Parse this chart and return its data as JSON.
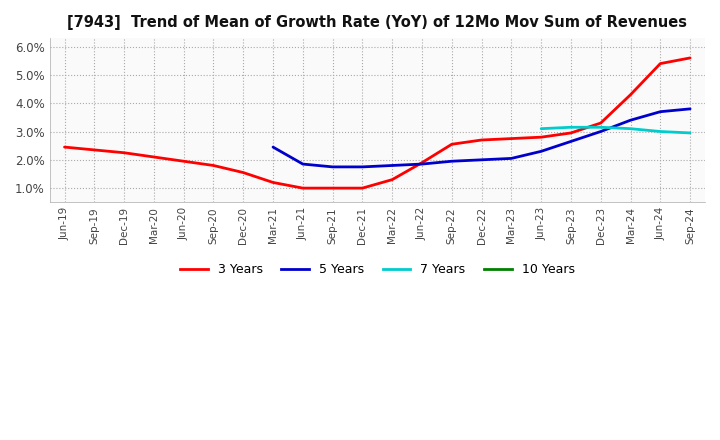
{
  "title": "[7943]  Trend of Mean of Growth Rate (YoY) of 12Mo Mov Sum of Revenues",
  "ylim": [
    0.005,
    0.063
  ],
  "yticks": [
    0.01,
    0.02,
    0.03,
    0.04,
    0.05,
    0.06
  ],
  "ytick_labels": [
    "1.0%",
    "2.0%",
    "3.0%",
    "4.0%",
    "5.0%",
    "6.0%"
  ],
  "x_labels": [
    "Jun-19",
    "Sep-19",
    "Dec-19",
    "Mar-20",
    "Jun-20",
    "Sep-20",
    "Dec-20",
    "Mar-21",
    "Jun-21",
    "Sep-21",
    "Dec-21",
    "Mar-22",
    "Jun-22",
    "Sep-22",
    "Dec-22",
    "Mar-23",
    "Jun-23",
    "Sep-23",
    "Dec-23",
    "Mar-24",
    "Jun-24",
    "Sep-24"
  ],
  "series": {
    "3 Years": {
      "color": "#FF0000",
      "data": [
        0.0245,
        0.0235,
        0.0225,
        0.021,
        0.0195,
        0.018,
        0.0155,
        0.012,
        0.01,
        0.01,
        0.01,
        0.013,
        0.019,
        0.0255,
        0.027,
        0.0275,
        0.028,
        0.0295,
        0.033,
        0.043,
        0.054,
        0.056
      ]
    },
    "5 Years": {
      "color": "#0000CC",
      "data": [
        null,
        null,
        null,
        null,
        null,
        null,
        null,
        0.0245,
        0.0185,
        0.0175,
        0.0175,
        0.018,
        0.0185,
        0.0195,
        0.02,
        0.0205,
        0.023,
        0.0265,
        0.03,
        0.034,
        0.037,
        0.038
      ]
    },
    "7 Years": {
      "color": "#00CCCC",
      "data": [
        null,
        null,
        null,
        null,
        null,
        null,
        null,
        null,
        null,
        null,
        null,
        null,
        null,
        null,
        null,
        null,
        0.031,
        0.0315,
        0.0315,
        0.031,
        0.03,
        0.0295
      ]
    },
    "10 Years": {
      "color": "#008000",
      "data": [
        null,
        null,
        null,
        null,
        null,
        null,
        null,
        null,
        null,
        null,
        null,
        null,
        null,
        null,
        null,
        null,
        null,
        null,
        null,
        null,
        null,
        null
      ]
    }
  },
  "legend_order": [
    "3 Years",
    "5 Years",
    "7 Years",
    "10 Years"
  ],
  "background_color": "#FFFFFF",
  "plot_bg_color": "#FAFAFA",
  "grid_color": "#AAAAAA"
}
